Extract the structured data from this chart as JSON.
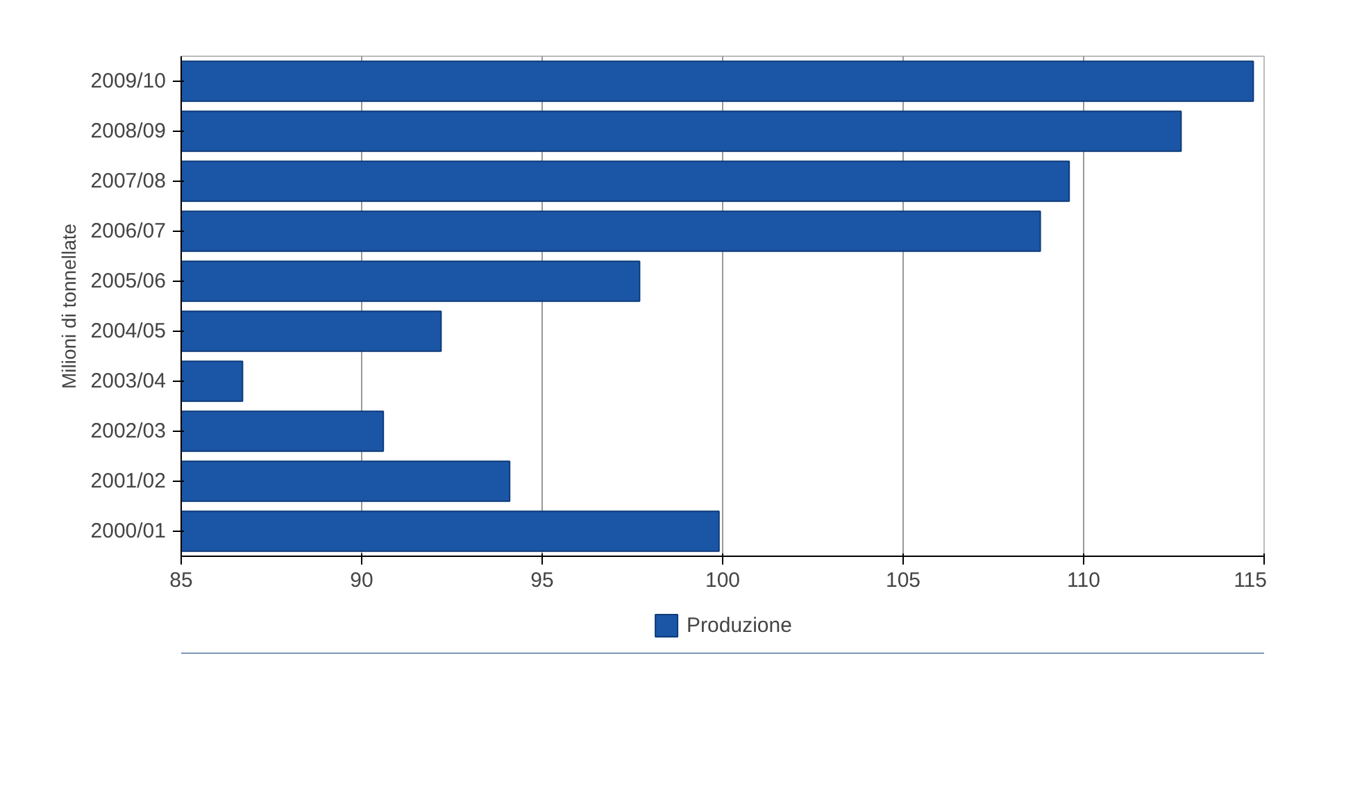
{
  "chart_data": {
    "type": "bar",
    "orientation": "horizontal",
    "ylabel": "Milioni di tonnellate",
    "categories": [
      "2009/10",
      "2008/09",
      "2007/08",
      "2006/07",
      "2005/06",
      "2004/05",
      "2003/04",
      "2002/03",
      "2001/02",
      "2000/01"
    ],
    "series": [
      {
        "name": "Produzione",
        "color": "#1b56a6",
        "values": [
          114.7,
          112.7,
          109.6,
          108.8,
          97.7,
          92.2,
          86.7,
          90.6,
          94.1,
          99.9
        ]
      }
    ],
    "xlim": [
      85,
      115
    ],
    "xticks": [
      85,
      90,
      95,
      100,
      105,
      110,
      115
    ],
    "grid": "x",
    "legend": "bottom"
  }
}
